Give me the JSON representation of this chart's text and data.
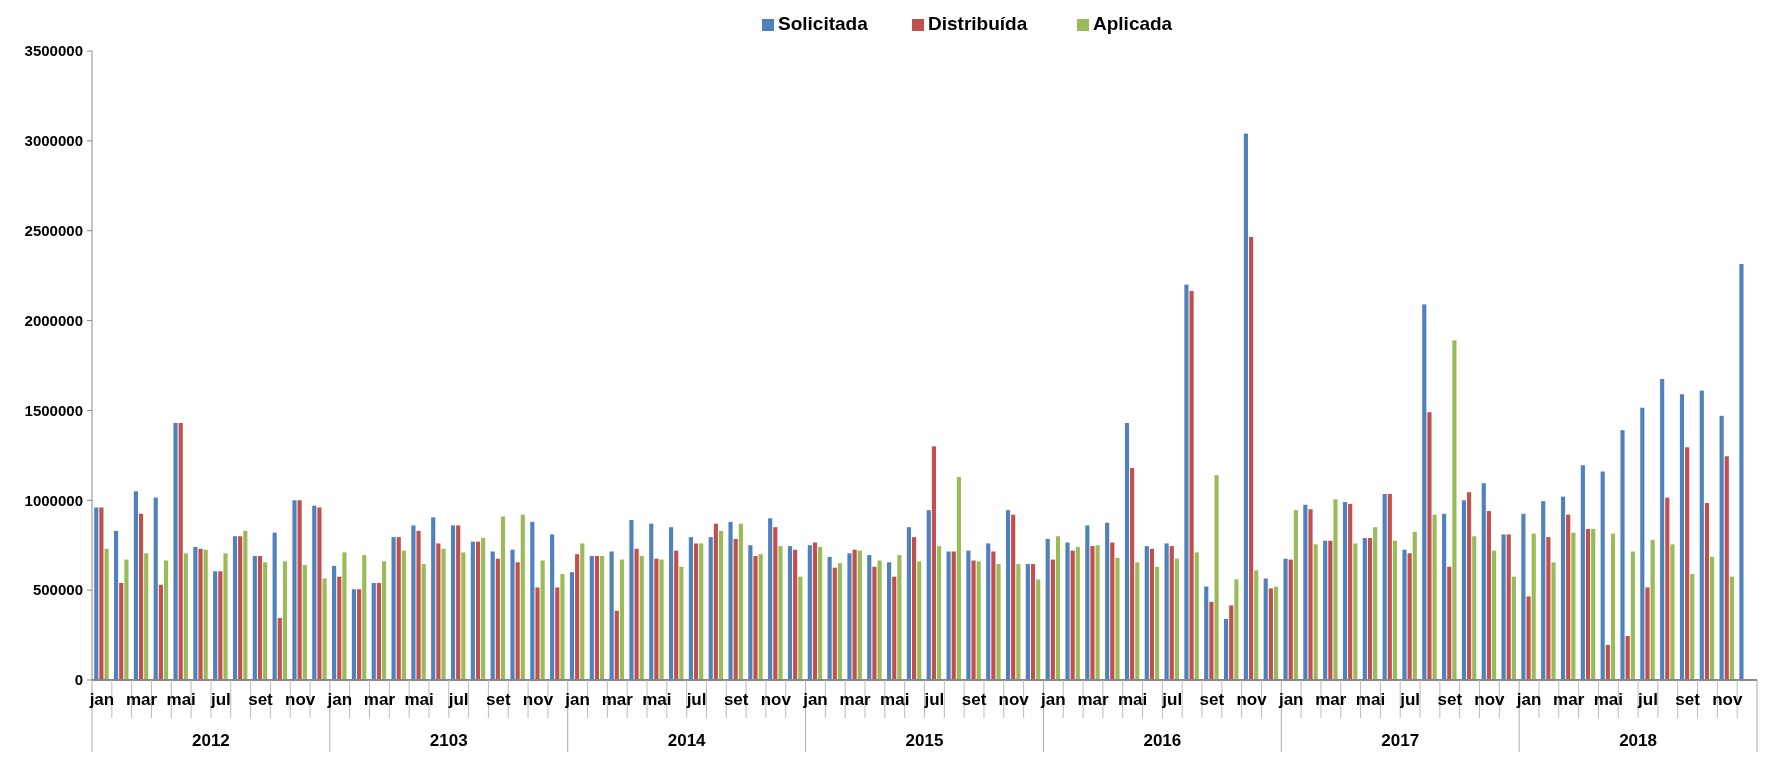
{
  "chart_data": {
    "type": "bar",
    "categories": [
      "jan",
      null,
      "mar",
      null,
      "mai",
      null,
      "jul",
      null,
      "set",
      null,
      "nov",
      null,
      "jan",
      null,
      "mar",
      null,
      "mai",
      null,
      "jul",
      null,
      "set",
      null,
      "nov",
      null,
      "jan",
      null,
      "mar",
      null,
      "mai",
      null,
      "jul",
      null,
      "set",
      null,
      "nov",
      null,
      "jan",
      null,
      "mar",
      null,
      "mai",
      null,
      "jul",
      null,
      "set",
      null,
      "nov",
      null,
      "jan",
      null,
      "mar",
      null,
      "mai",
      null,
      "jul",
      null,
      "set",
      null,
      "nov",
      null,
      "jan",
      null,
      "mar",
      null,
      "mai",
      null,
      "jul",
      null,
      "set",
      null,
      "nov",
      null,
      "jan",
      null,
      "mar",
      null,
      "mai",
      null,
      "jul",
      null,
      "set",
      null,
      "nov",
      null
    ],
    "series": [
      {
        "name": "Solicitada",
        "color": "#4f81bd",
        "values": [
          960000,
          830000,
          1050000,
          1015000,
          1430000,
          740000,
          605000,
          800000,
          690000,
          820000,
          1000000,
          970000,
          635000,
          505000,
          540000,
          795000,
          860000,
          905000,
          860000,
          770000,
          715000,
          725000,
          880000,
          810000,
          600000,
          690000,
          715000,
          890000,
          870000,
          850000,
          795000,
          795000,
          880000,
          750000,
          900000,
          745000,
          750000,
          685000,
          705000,
          695000,
          655000,
          850000,
          945000,
          715000,
          720000,
          760000,
          945000,
          645000,
          785000,
          765000,
          860000,
          875000,
          1430000,
          745000,
          760000,
          2200000,
          520000,
          340000,
          3040000,
          565000,
          675000,
          975000,
          775000,
          990000,
          790000,
          1035000,
          725000,
          2090000,
          925000,
          1000000,
          1095000,
          810000,
          925000,
          995000,
          1020000,
          1195000,
          1160000,
          1390000,
          1515000,
          1675000,
          1590000,
          1610000,
          1470000,
          2315000
        ]
      },
      {
        "name": "Distribuída",
        "color": "#c0504d",
        "values": [
          960000,
          540000,
          925000,
          530000,
          1430000,
          730000,
          605000,
          800000,
          690000,
          345000,
          1000000,
          960000,
          575000,
          505000,
          540000,
          795000,
          830000,
          760000,
          860000,
          770000,
          675000,
          655000,
          515000,
          515000,
          700000,
          690000,
          385000,
          730000,
          675000,
          720000,
          760000,
          870000,
          785000,
          690000,
          850000,
          725000,
          765000,
          625000,
          725000,
          630000,
          575000,
          795000,
          1300000,
          715000,
          665000,
          715000,
          920000,
          645000,
          670000,
          720000,
          745000,
          765000,
          1180000,
          730000,
          745000,
          2165000,
          435000,
          415000,
          2465000,
          510000,
          670000,
          950000,
          775000,
          980000,
          790000,
          1035000,
          705000,
          1490000,
          630000,
          1045000,
          940000,
          810000,
          465000,
          795000,
          920000,
          840000,
          195000,
          245000,
          515000,
          1015000,
          1295000,
          985000,
          1245000,
          null
        ]
      },
      {
        "name": "Aplicada",
        "color": "#9bbb59",
        "values": [
          730000,
          670000,
          705000,
          665000,
          705000,
          725000,
          705000,
          830000,
          655000,
          660000,
          640000,
          565000,
          710000,
          695000,
          660000,
          720000,
          645000,
          730000,
          710000,
          790000,
          910000,
          920000,
          665000,
          590000,
          760000,
          690000,
          670000,
          690000,
          670000,
          630000,
          760000,
          830000,
          870000,
          700000,
          745000,
          575000,
          740000,
          650000,
          720000,
          665000,
          695000,
          660000,
          745000,
          1130000,
          660000,
          645000,
          645000,
          560000,
          800000,
          740000,
          750000,
          680000,
          655000,
          630000,
          675000,
          710000,
          1140000,
          560000,
          610000,
          520000,
          945000,
          755000,
          1005000,
          760000,
          850000,
          775000,
          825000,
          920000,
          1890000,
          800000,
          720000,
          575000,
          815000,
          655000,
          820000,
          840000,
          815000,
          715000,
          780000,
          755000,
          590000,
          685000,
          575000,
          null
        ]
      }
    ],
    "ylim": [
      0,
      3500000
    ],
    "yticks": [
      0,
      500000,
      1000000,
      1500000,
      2000000,
      2500000,
      3000000,
      3500000
    ],
    "legend": "top",
    "annotations": [
      "2012",
      "2103",
      "2014",
      "2015",
      "2016",
      "2017",
      "2018"
    ]
  }
}
